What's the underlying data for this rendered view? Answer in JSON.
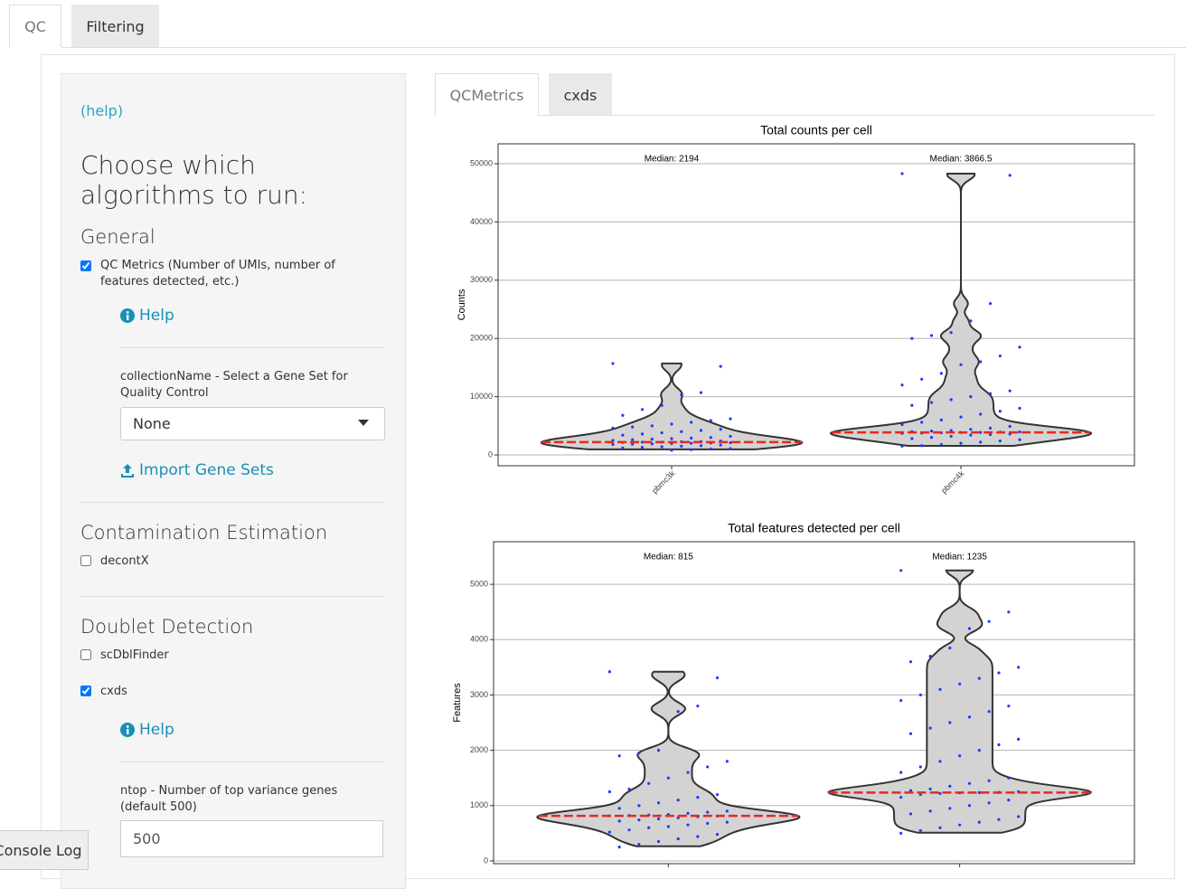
{
  "tabs": [
    "QC",
    "Filtering"
  ],
  "sidebar": {
    "help_link": "(help)",
    "heading": "Choose which algorithms to run:",
    "general": {
      "title": "General",
      "option": "QC Metrics (Number of UMIs, number of features detected, etc.)",
      "checked": true,
      "help": "Help",
      "select_label": "collectionName - Select a Gene Set for Quality Control",
      "select_value": "None",
      "import": "Import Gene Sets"
    },
    "contamination": {
      "title": "Contamination Estimation",
      "option": "decontX",
      "checked": false
    },
    "doublet": {
      "title": "Doublet Detection",
      "options": [
        {
          "label": "scDblFinder",
          "checked": false
        },
        {
          "label": "cxds",
          "checked": true
        }
      ],
      "help": "Help",
      "input_label": "ntop - Number of top variance genes (default 500)",
      "input_value": "500"
    }
  },
  "result_tabs": [
    "QCMetrics",
    "cxds"
  ],
  "console": "Console Log",
  "chart_data": [
    {
      "type": "violin",
      "title": "Total counts per cell",
      "ylabel": "Counts",
      "categories": [
        "pbmc3k",
        "pbmc4k"
      ],
      "medians": [
        2194,
        3866.5
      ],
      "median_labels": [
        "Median: 2194",
        "Median: 3866.5"
      ],
      "ylim": [
        -1860,
        53420
      ],
      "yticks": [
        0,
        10000,
        20000,
        30000,
        40000,
        50000
      ],
      "grid": true,
      "point_color": "#1a3cff",
      "violin_color": "#d3d3d3",
      "median_color": "#e8291c",
      "points": [
        [
          15700,
          15200,
          10700,
          10300,
          8500,
          7800,
          6800,
          6200,
          5900,
          5600,
          5300,
          5000,
          4800,
          4600,
          4400,
          4200,
          4000,
          3800,
          3600,
          3400,
          3200,
          3000,
          2900,
          2800,
          2700,
          2600,
          2500,
          2400,
          2300,
          2250,
          2200,
          2190,
          2150,
          2100,
          2050,
          2000,
          1950,
          1900,
          1850,
          1800,
          1700,
          1600,
          1500,
          1400,
          1300,
          1200,
          1100,
          1000,
          900,
          800
        ],
        [
          48300,
          48000,
          26000,
          23000,
          21000,
          20500,
          20000,
          18500,
          17000,
          16000,
          15500,
          14000,
          13000,
          12000,
          11000,
          10500,
          10000,
          9500,
          9000,
          8500,
          8000,
          7500,
          7000,
          6500,
          6000,
          5600,
          5200,
          4900,
          4600,
          4400,
          4200,
          4100,
          4000,
          3950,
          3900,
          3870,
          3850,
          3800,
          3750,
          3700,
          3600,
          3500,
          3400,
          3200,
          3000,
          2800,
          2600,
          2400,
          2200,
          2000,
          1800,
          1600,
          1500
        ]
      ]
    },
    {
      "type": "violin",
      "title": "Total features detected per cell",
      "ylabel": "Features",
      "categories": [
        null,
        null
      ],
      "medians": [
        815,
        1235
      ],
      "median_labels": [
        "Median: 815",
        "Median: 1235"
      ],
      "ylim": [
        -50,
        5770
      ],
      "yticks": [
        0,
        1000,
        2000,
        3000,
        4000,
        5000
      ],
      "grid": true,
      "point_color": "#1a3cff",
      "violin_color": "#d3d3d3",
      "median_color": "#e8291c",
      "points": [
        [
          3420,
          3310,
          2800,
          2700,
          2000,
          1950,
          1900,
          1800,
          1700,
          1600,
          1500,
          1400,
          1300,
          1250,
          1200,
          1150,
          1100,
          1050,
          1000,
          950,
          900,
          880,
          860,
          840,
          830,
          820,
          815,
          810,
          800,
          780,
          760,
          740,
          720,
          700,
          680,
          650,
          620,
          600,
          560,
          520,
          480,
          440,
          400,
          350,
          300,
          250
        ],
        [
          5250,
          4500,
          4330,
          4200,
          3850,
          3700,
          3600,
          3500,
          3400,
          3300,
          3200,
          3100,
          3000,
          2900,
          2800,
          2700,
          2600,
          2500,
          2400,
          2300,
          2200,
          2100,
          2000,
          1900,
          1800,
          1700,
          1600,
          1500,
          1450,
          1400,
          1350,
          1300,
          1270,
          1250,
          1240,
          1235,
          1230,
          1220,
          1200,
          1150,
          1100,
          1050,
          1000,
          950,
          900,
          850,
          800,
          750,
          700,
          650,
          600,
          550,
          500
        ]
      ]
    }
  ]
}
